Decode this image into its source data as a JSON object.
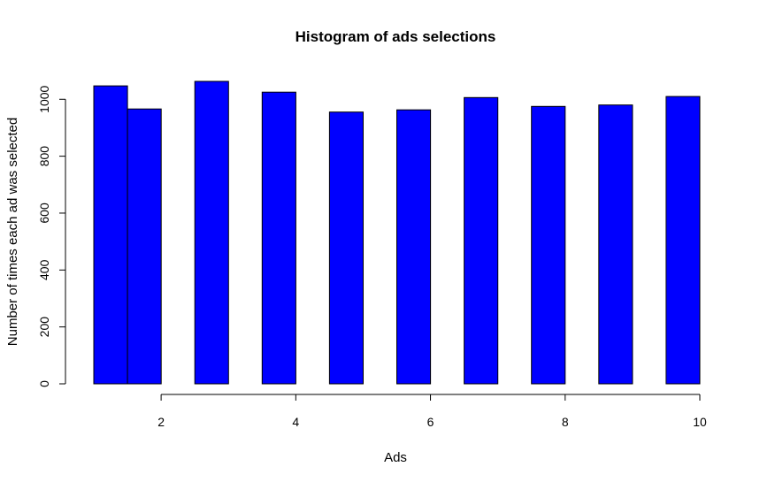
{
  "chart_data": {
    "type": "bar",
    "title": "Histogram of ads selections",
    "xlabel": "Ads",
    "ylabel": "Number of times each ad was selected",
    "bars": [
      {
        "x0": 1.0,
        "x1": 1.5,
        "value": 1047
      },
      {
        "x0": 1.5,
        "x1": 2.0,
        "value": 966
      },
      {
        "x0": 2.5,
        "x1": 3.0,
        "value": 1063
      },
      {
        "x0": 3.5,
        "x1": 4.0,
        "value": 1025
      },
      {
        "x0": 4.5,
        "x1": 5.0,
        "value": 955
      },
      {
        "x0": 5.5,
        "x1": 6.0,
        "value": 963
      },
      {
        "x0": 6.5,
        "x1": 7.0,
        "value": 1006
      },
      {
        "x0": 7.5,
        "x1": 8.0,
        "value": 975
      },
      {
        "x0": 8.5,
        "x1": 9.0,
        "value": 980
      },
      {
        "x0": 9.5,
        "x1": 10.0,
        "value": 1010
      }
    ],
    "x_ticks": [
      2,
      4,
      6,
      8,
      10
    ],
    "y_ticks": [
      0,
      200,
      400,
      600,
      800,
      1000
    ],
    "xlim": [
      1,
      10
    ],
    "ylim": [
      0,
      1063
    ],
    "bar_color": "#0000ff",
    "grid": false,
    "legend": "none"
  }
}
